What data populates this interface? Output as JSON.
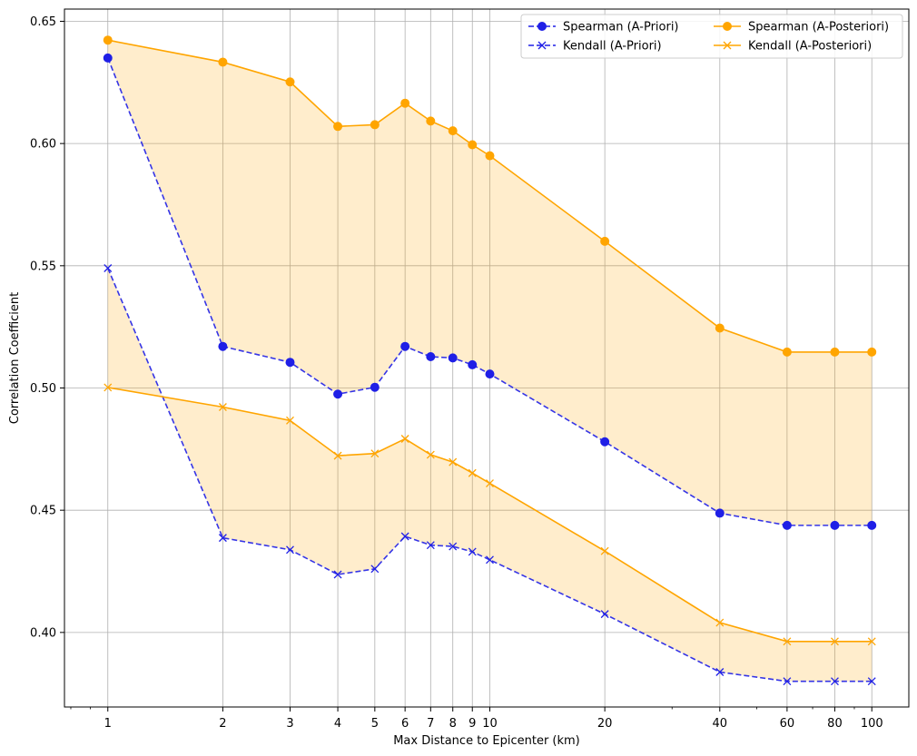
{
  "chart_data": {
    "type": "line",
    "title": "",
    "xlabel": "Max Distance to Epicenter (km)",
    "ylabel": "Correlation Coefficient",
    "x_scale": "log",
    "xlim": [
      0.77,
      125
    ],
    "ylim": [
      0.3695,
      0.655
    ],
    "grid": true,
    "legend_position": "top-right",
    "legend_columns": 2,
    "x_ticks": [
      1,
      2,
      3,
      4,
      5,
      6,
      7,
      8,
      9,
      10,
      20,
      40,
      60,
      80,
      100
    ],
    "x_tick_labels": [
      "1",
      "2",
      "3",
      "4",
      "5",
      "6",
      "7",
      "8",
      "9",
      "10",
      "20",
      "40",
      "60",
      "80",
      "100"
    ],
    "y_ticks": [
      0.4,
      0.45,
      0.5,
      0.55,
      0.6,
      0.65
    ],
    "y_tick_labels": [
      "0.40",
      "0.45",
      "0.50",
      "0.55",
      "0.60",
      "0.65"
    ],
    "x": [
      1,
      2,
      3,
      4,
      5,
      6,
      7,
      8,
      9,
      10,
      20,
      40,
      60,
      80,
      100
    ],
    "series": [
      {
        "name": "Spearman (A-Priori)",
        "color": "#1f1fe6",
        "line": "dashed",
        "marker": "circle",
        "values": [
          0.635,
          0.517,
          0.5105,
          0.4975,
          0.5003,
          0.517,
          0.5128,
          0.5123,
          0.5095,
          0.5057,
          0.478,
          0.4488,
          0.4438,
          0.4438,
          0.4438
        ]
      },
      {
        "name": "Kendall (A-Priori)",
        "color": "#1f1fe6",
        "line": "dashed",
        "marker": "x",
        "values": [
          0.549,
          0.4387,
          0.4338,
          0.4237,
          0.426,
          0.4393,
          0.4357,
          0.4352,
          0.433,
          0.4297,
          0.4075,
          0.3838,
          0.38,
          0.38,
          0.38
        ]
      },
      {
        "name": "Spearman (A-Posteriori)",
        "color": "#ffa500",
        "line": "solid",
        "marker": "circle",
        "values": [
          0.6423,
          0.6333,
          0.6252,
          0.607,
          0.6077,
          0.6165,
          0.6092,
          0.6052,
          0.5995,
          0.595,
          0.56,
          0.5245,
          0.5147,
          0.5147,
          0.5147
        ]
      },
      {
        "name": "Kendall (A-Posteriori)",
        "color": "#ffa500",
        "line": "solid",
        "marker": "x",
        "values": [
          0.5002,
          0.4922,
          0.4867,
          0.4723,
          0.4732,
          0.4792,
          0.4727,
          0.4697,
          0.4652,
          0.461,
          0.4333,
          0.404,
          0.3963,
          0.3963,
          0.3963
        ]
      }
    ],
    "fill_between": [
      {
        "between": [
          "Spearman (A-Priori)",
          "Spearman (A-Posteriori)"
        ],
        "color": "#ffa500",
        "opacity": 0.2
      },
      {
        "between": [
          "Kendall (A-Priori)",
          "Kendall (A-Posteriori)"
        ],
        "color": "#ffa500",
        "opacity": 0.2
      }
    ],
    "legend_order": [
      0,
      1,
      2,
      3
    ],
    "colors": {
      "grid": "#b0b0b0",
      "axis": "#000000",
      "background": "#ffffff"
    }
  }
}
